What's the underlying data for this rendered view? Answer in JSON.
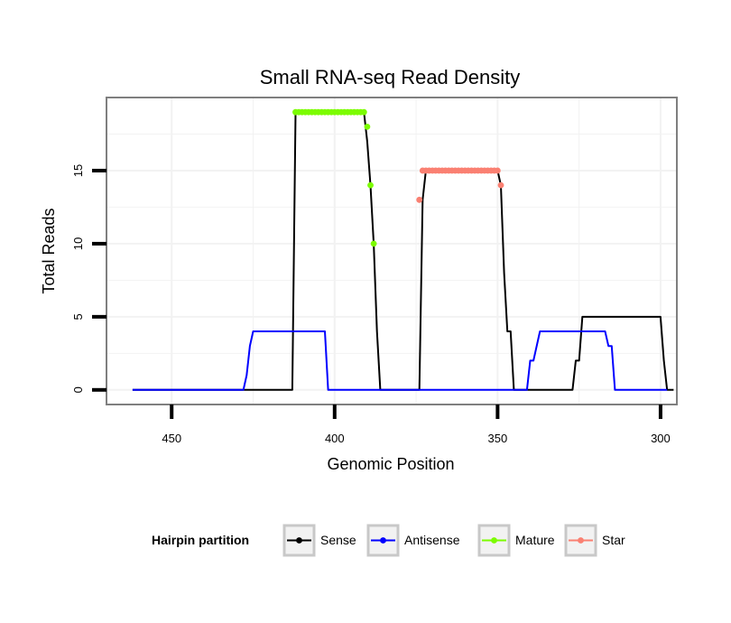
{
  "chart_data": {
    "type": "line",
    "title": "Small RNA-seq Read Density",
    "xlabel": "Genomic Position",
    "ylabel": "Total Reads",
    "xlim": [
      470,
      295
    ],
    "ylim": [
      -1,
      20
    ],
    "x_reversed": true,
    "xticks": [
      450,
      400,
      350,
      300
    ],
    "xtick_labels": [
      "450",
      "400",
      "350",
      "300"
    ],
    "yticks": [
      0,
      5,
      10,
      15
    ],
    "ytick_labels": [
      "0",
      "5",
      "10",
      "15"
    ],
    "grid": true,
    "legend": {
      "title": "Hairpin partition",
      "placement": "bottom",
      "entries": [
        {
          "label": "Sense",
          "color": "#000000"
        },
        {
          "label": "Antisense",
          "color": "#0000ff"
        },
        {
          "label": "Mature",
          "color": "#7cfc00"
        },
        {
          "label": "Star",
          "color": "#fa8072"
        }
      ]
    },
    "series": [
      {
        "name": "Sense",
        "color": "#000000",
        "points": [
          [
            462,
            0
          ],
          [
            413,
            0
          ],
          [
            412,
            19
          ],
          [
            391,
            19
          ],
          [
            390,
            17
          ],
          [
            389,
            14
          ],
          [
            388,
            10
          ],
          [
            387,
            4
          ],
          [
            386,
            0
          ],
          [
            374,
            0
          ],
          [
            373,
            13
          ],
          [
            372,
            15
          ],
          [
            350,
            15
          ],
          [
            349,
            14
          ],
          [
            348,
            8
          ],
          [
            347,
            4
          ],
          [
            346,
            4
          ],
          [
            345,
            0
          ],
          [
            327,
            0
          ],
          [
            326,
            2
          ],
          [
            325,
            2
          ],
          [
            324,
            5
          ],
          [
            300,
            5
          ],
          [
            299,
            2
          ],
          [
            298,
            0
          ],
          [
            296,
            0
          ]
        ]
      },
      {
        "name": "Antisense",
        "color": "#0000ff",
        "points": [
          [
            462,
            0
          ],
          [
            428,
            0
          ],
          [
            427,
            1
          ],
          [
            426,
            3
          ],
          [
            425,
            4
          ],
          [
            403,
            4
          ],
          [
            402,
            0
          ],
          [
            341,
            0
          ],
          [
            340,
            2
          ],
          [
            339,
            2
          ],
          [
            338,
            3
          ],
          [
            337,
            4
          ],
          [
            317,
            4
          ],
          [
            316,
            3
          ],
          [
            315,
            3
          ],
          [
            314,
            0
          ],
          [
            298,
            0
          ]
        ]
      },
      {
        "name": "Mature",
        "color": "#7cfc00",
        "dots": [
          [
            412,
            19
          ],
          [
            411,
            19
          ],
          [
            410,
            19
          ],
          [
            409,
            19
          ],
          [
            408,
            19
          ],
          [
            407,
            19
          ],
          [
            406,
            19
          ],
          [
            405,
            19
          ],
          [
            404,
            19
          ],
          [
            403,
            19
          ],
          [
            402,
            19
          ],
          [
            401,
            19
          ],
          [
            400,
            19
          ],
          [
            399,
            19
          ],
          [
            398,
            19
          ],
          [
            397,
            19
          ],
          [
            396,
            19
          ],
          [
            395,
            19
          ],
          [
            394,
            19
          ],
          [
            393,
            19
          ],
          [
            392,
            19
          ],
          [
            391,
            19
          ],
          [
            390,
            18
          ],
          [
            389,
            14
          ],
          [
            388,
            10
          ]
        ]
      },
      {
        "name": "Star",
        "color": "#fa8072",
        "dots": [
          [
            374,
            13
          ],
          [
            373,
            15
          ],
          [
            372,
            15
          ],
          [
            371,
            15
          ],
          [
            370,
            15
          ],
          [
            369,
            15
          ],
          [
            368,
            15
          ],
          [
            367,
            15
          ],
          [
            366,
            15
          ],
          [
            365,
            15
          ],
          [
            364,
            15
          ],
          [
            363,
            15
          ],
          [
            362,
            15
          ],
          [
            361,
            15
          ],
          [
            360,
            15
          ],
          [
            359,
            15
          ],
          [
            358,
            15
          ],
          [
            357,
            15
          ],
          [
            356,
            15
          ],
          [
            355,
            15
          ],
          [
            354,
            15
          ],
          [
            353,
            15
          ],
          [
            352,
            15
          ],
          [
            351,
            15
          ],
          [
            350,
            15
          ],
          [
            349,
            14
          ]
        ]
      }
    ]
  }
}
